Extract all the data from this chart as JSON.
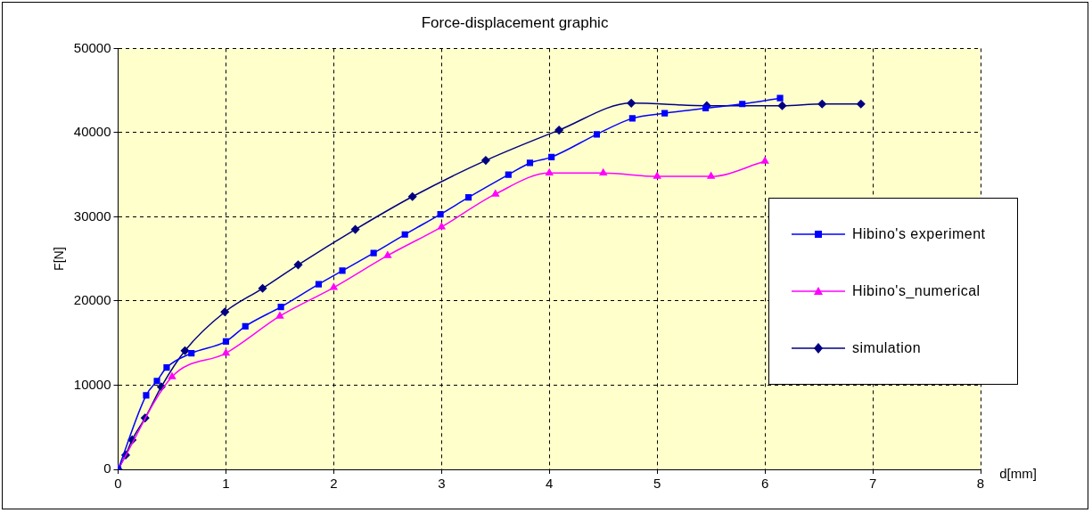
{
  "chart_data": {
    "type": "line",
    "title": "Force-displacement graphic",
    "xlabel": "d[mm]",
    "ylabel": "F[N]",
    "xlim": [
      0,
      8
    ],
    "xticks": [
      0,
      1,
      2,
      3,
      4,
      5,
      6,
      7,
      8
    ],
    "ylim": [
      0,
      50000
    ],
    "yticks": [
      0,
      10000,
      20000,
      30000,
      40000,
      50000
    ],
    "grid": true,
    "legend": "right",
    "line_style": "solid",
    "series": [
      {
        "name": "Hibino's experiment",
        "color": "#0000ff",
        "marker": "square",
        "x": [
          0,
          0.26,
          0.36,
          0.45,
          0.68,
          1.0,
          1.18,
          1.51,
          1.86,
          2.08,
          2.37,
          2.66,
          2.99,
          3.25,
          3.62,
          3.82,
          4.02,
          4.44,
          4.77,
          5.07,
          5.45,
          5.79,
          6.14
        ],
        "values": [
          0,
          8800,
          10500,
          12100,
          13800,
          15200,
          17000,
          19300,
          22000,
          23600,
          25700,
          27900,
          30300,
          32300,
          35000,
          36400,
          37100,
          39800,
          41700,
          42300,
          42900,
          43400,
          44100
        ]
      },
      {
        "name": "Hibino's_numerical",
        "color": "#ff00ff",
        "marker": "triangle",
        "x": [
          0,
          0.5,
          1.0,
          1.5,
          2.0,
          2.5,
          3.0,
          3.5,
          4.0,
          4.5,
          5.0,
          5.5,
          6.0
        ],
        "values": [
          0,
          11000,
          13800,
          18200,
          21600,
          25400,
          28800,
          32700,
          35200,
          35200,
          34800,
          34800,
          36600
        ]
      },
      {
        "name": "simulation",
        "color": "#000080",
        "marker": "diamond",
        "x": [
          0,
          0.07,
          0.13,
          0.25,
          0.4,
          0.62,
          0.99,
          1.34,
          1.67,
          2.2,
          2.73,
          3.41,
          4.09,
          4.76,
          5.46,
          6.16,
          6.53,
          6.89
        ],
        "values": [
          0,
          1700,
          3500,
          6100,
          9800,
          14100,
          18700,
          21500,
          24300,
          28500,
          32400,
          36700,
          40300,
          43500,
          43200,
          43200,
          43400,
          43400
        ]
      }
    ]
  }
}
